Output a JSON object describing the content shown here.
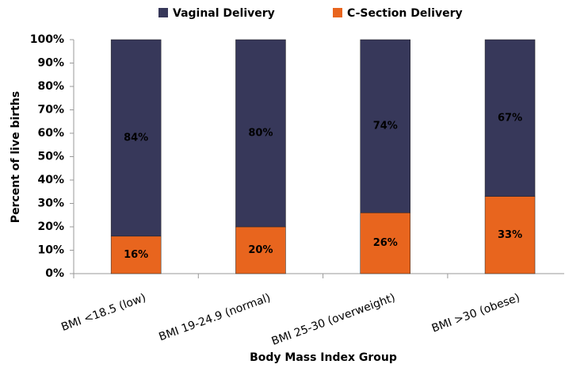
{
  "chart_data": {
    "type": "stacked_bar",
    "x_label": "Body Mass Index Group",
    "y_label": "Percent of live births",
    "categories": [
      "BMI <18.5 (low)",
      "BMI 19-24.9 (normal)",
      "BMI 25-30 (overweight)",
      "BMI >30 (obese)"
    ],
    "series": [
      {
        "name": "C-Section Delivery",
        "color": "#e8651e",
        "values": [
          16,
          20,
          26,
          33
        ],
        "value_labels": [
          "16%",
          "20%",
          "26%",
          "33%"
        ]
      },
      {
        "name": "Vaginal Delivery",
        "color": "#37385a",
        "values": [
          84,
          80,
          74,
          67
        ],
        "value_labels": [
          "84%",
          "80%",
          "74%",
          "67%"
        ]
      }
    ],
    "ylim": [
      0,
      100
    ],
    "yticks": [
      {
        "value": 0,
        "label": "0%"
      },
      {
        "value": 10,
        "label": "10%"
      },
      {
        "value": 20,
        "label": "20%"
      },
      {
        "value": 30,
        "label": "30%"
      },
      {
        "value": 40,
        "label": "40%"
      },
      {
        "value": 50,
        "label": "50%"
      },
      {
        "value": 60,
        "label": "60%"
      },
      {
        "value": 70,
        "label": "70%"
      },
      {
        "value": 80,
        "label": "80%"
      },
      {
        "value": 90,
        "label": "90%"
      },
      {
        "value": 100,
        "label": "100%"
      }
    ],
    "grid": false,
    "legend": "top"
  }
}
